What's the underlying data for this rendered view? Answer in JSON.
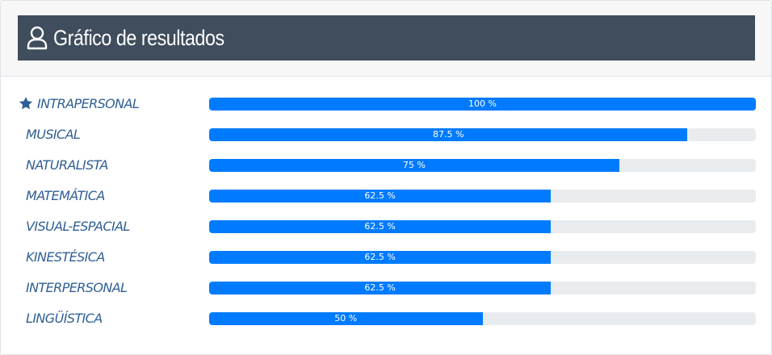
{
  "header": {
    "title": "Gráfico de resultados",
    "icon": "user-icon"
  },
  "colors": {
    "title_bar": "#3f4d5d",
    "bar_fill": "#007bff",
    "bar_track": "#e9ecef",
    "label": "#2f5f95"
  },
  "results": [
    {
      "label": "INTRAPERSONAL",
      "value": 100,
      "text": "100 %",
      "icon": "star-icon"
    },
    {
      "label": "MUSICAL",
      "value": 87.5,
      "text": "87.5 %"
    },
    {
      "label": "NATURALISTA",
      "value": 75,
      "text": "75 %"
    },
    {
      "label": "MATEMÁTICA",
      "value": 62.5,
      "text": "62.5 %"
    },
    {
      "label": "VISUAL-ESPACIAL",
      "value": 62.5,
      "text": "62.5 %"
    },
    {
      "label": "KINESTÉSICA",
      "value": 62.5,
      "text": "62.5 %"
    },
    {
      "label": "INTERPERSONAL",
      "value": 62.5,
      "text": "62.5 %"
    },
    {
      "label": "LINGÜÍSTICA",
      "value": 50,
      "text": "50 %"
    }
  ]
}
